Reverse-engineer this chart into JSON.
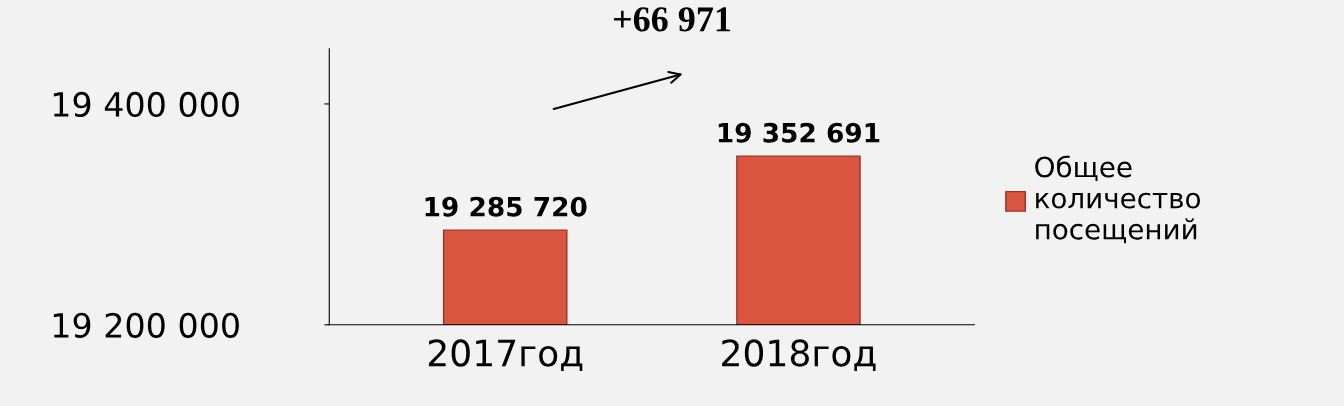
{
  "chart_data": {
    "type": "bar",
    "categories": [
      "2017год",
      "2018год"
    ],
    "series": [
      {
        "name": "Общее количество посещений",
        "color": "#d9553f",
        "values": [
          19285720,
          19352691
        ],
        "value_labels": [
          "19 285 720",
          "19 352 691"
        ]
      }
    ],
    "ylim": [
      19200000,
      19450000
    ],
    "yticks": [
      {
        "value": 19200000,
        "label": "19 200 000"
      },
      {
        "value": 19400000,
        "label": "19 400 000"
      }
    ],
    "annotations": [
      "+66 971"
    ],
    "legend": "right",
    "grid": false
  }
}
